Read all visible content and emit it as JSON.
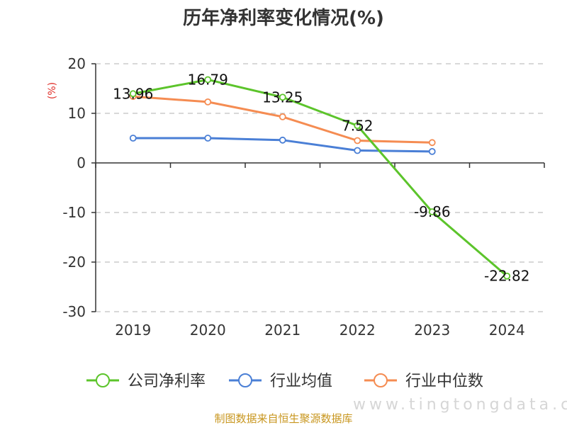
{
  "chart_data": {
    "type": "line",
    "title": "历年净利率变化情况(%)",
    "ylabel": "(%)",
    "categories": [
      "2019",
      "2020",
      "2021",
      "2022",
      "2023",
      "2024"
    ],
    "ylim": [
      -30,
      20
    ],
    "yticks": [
      20,
      10,
      0,
      -10,
      -20,
      -30
    ],
    "grid": true,
    "legend_position": "bottom",
    "series": [
      {
        "name": "公司净利率",
        "color": "#5cc42b",
        "values": [
          13.96,
          16.79,
          13.25,
          7.52,
          -9.86,
          -22.82
        ],
        "labels": [
          "13.96",
          "16.79",
          "13.25",
          "7.52",
          "-9.86",
          "-22.82"
        ]
      },
      {
        "name": "行业均值",
        "color": "#4a7fd6",
        "values": [
          5.0,
          5.0,
          4.6,
          2.5,
          2.3,
          null
        ]
      },
      {
        "name": "行业中位数",
        "color": "#f58c52",
        "values": [
          13.4,
          12.3,
          9.3,
          4.5,
          4.1,
          null
        ]
      }
    ]
  },
  "source": "制图数据来自恒生聚源数据库",
  "watermark": "www.tingtongdata.com"
}
